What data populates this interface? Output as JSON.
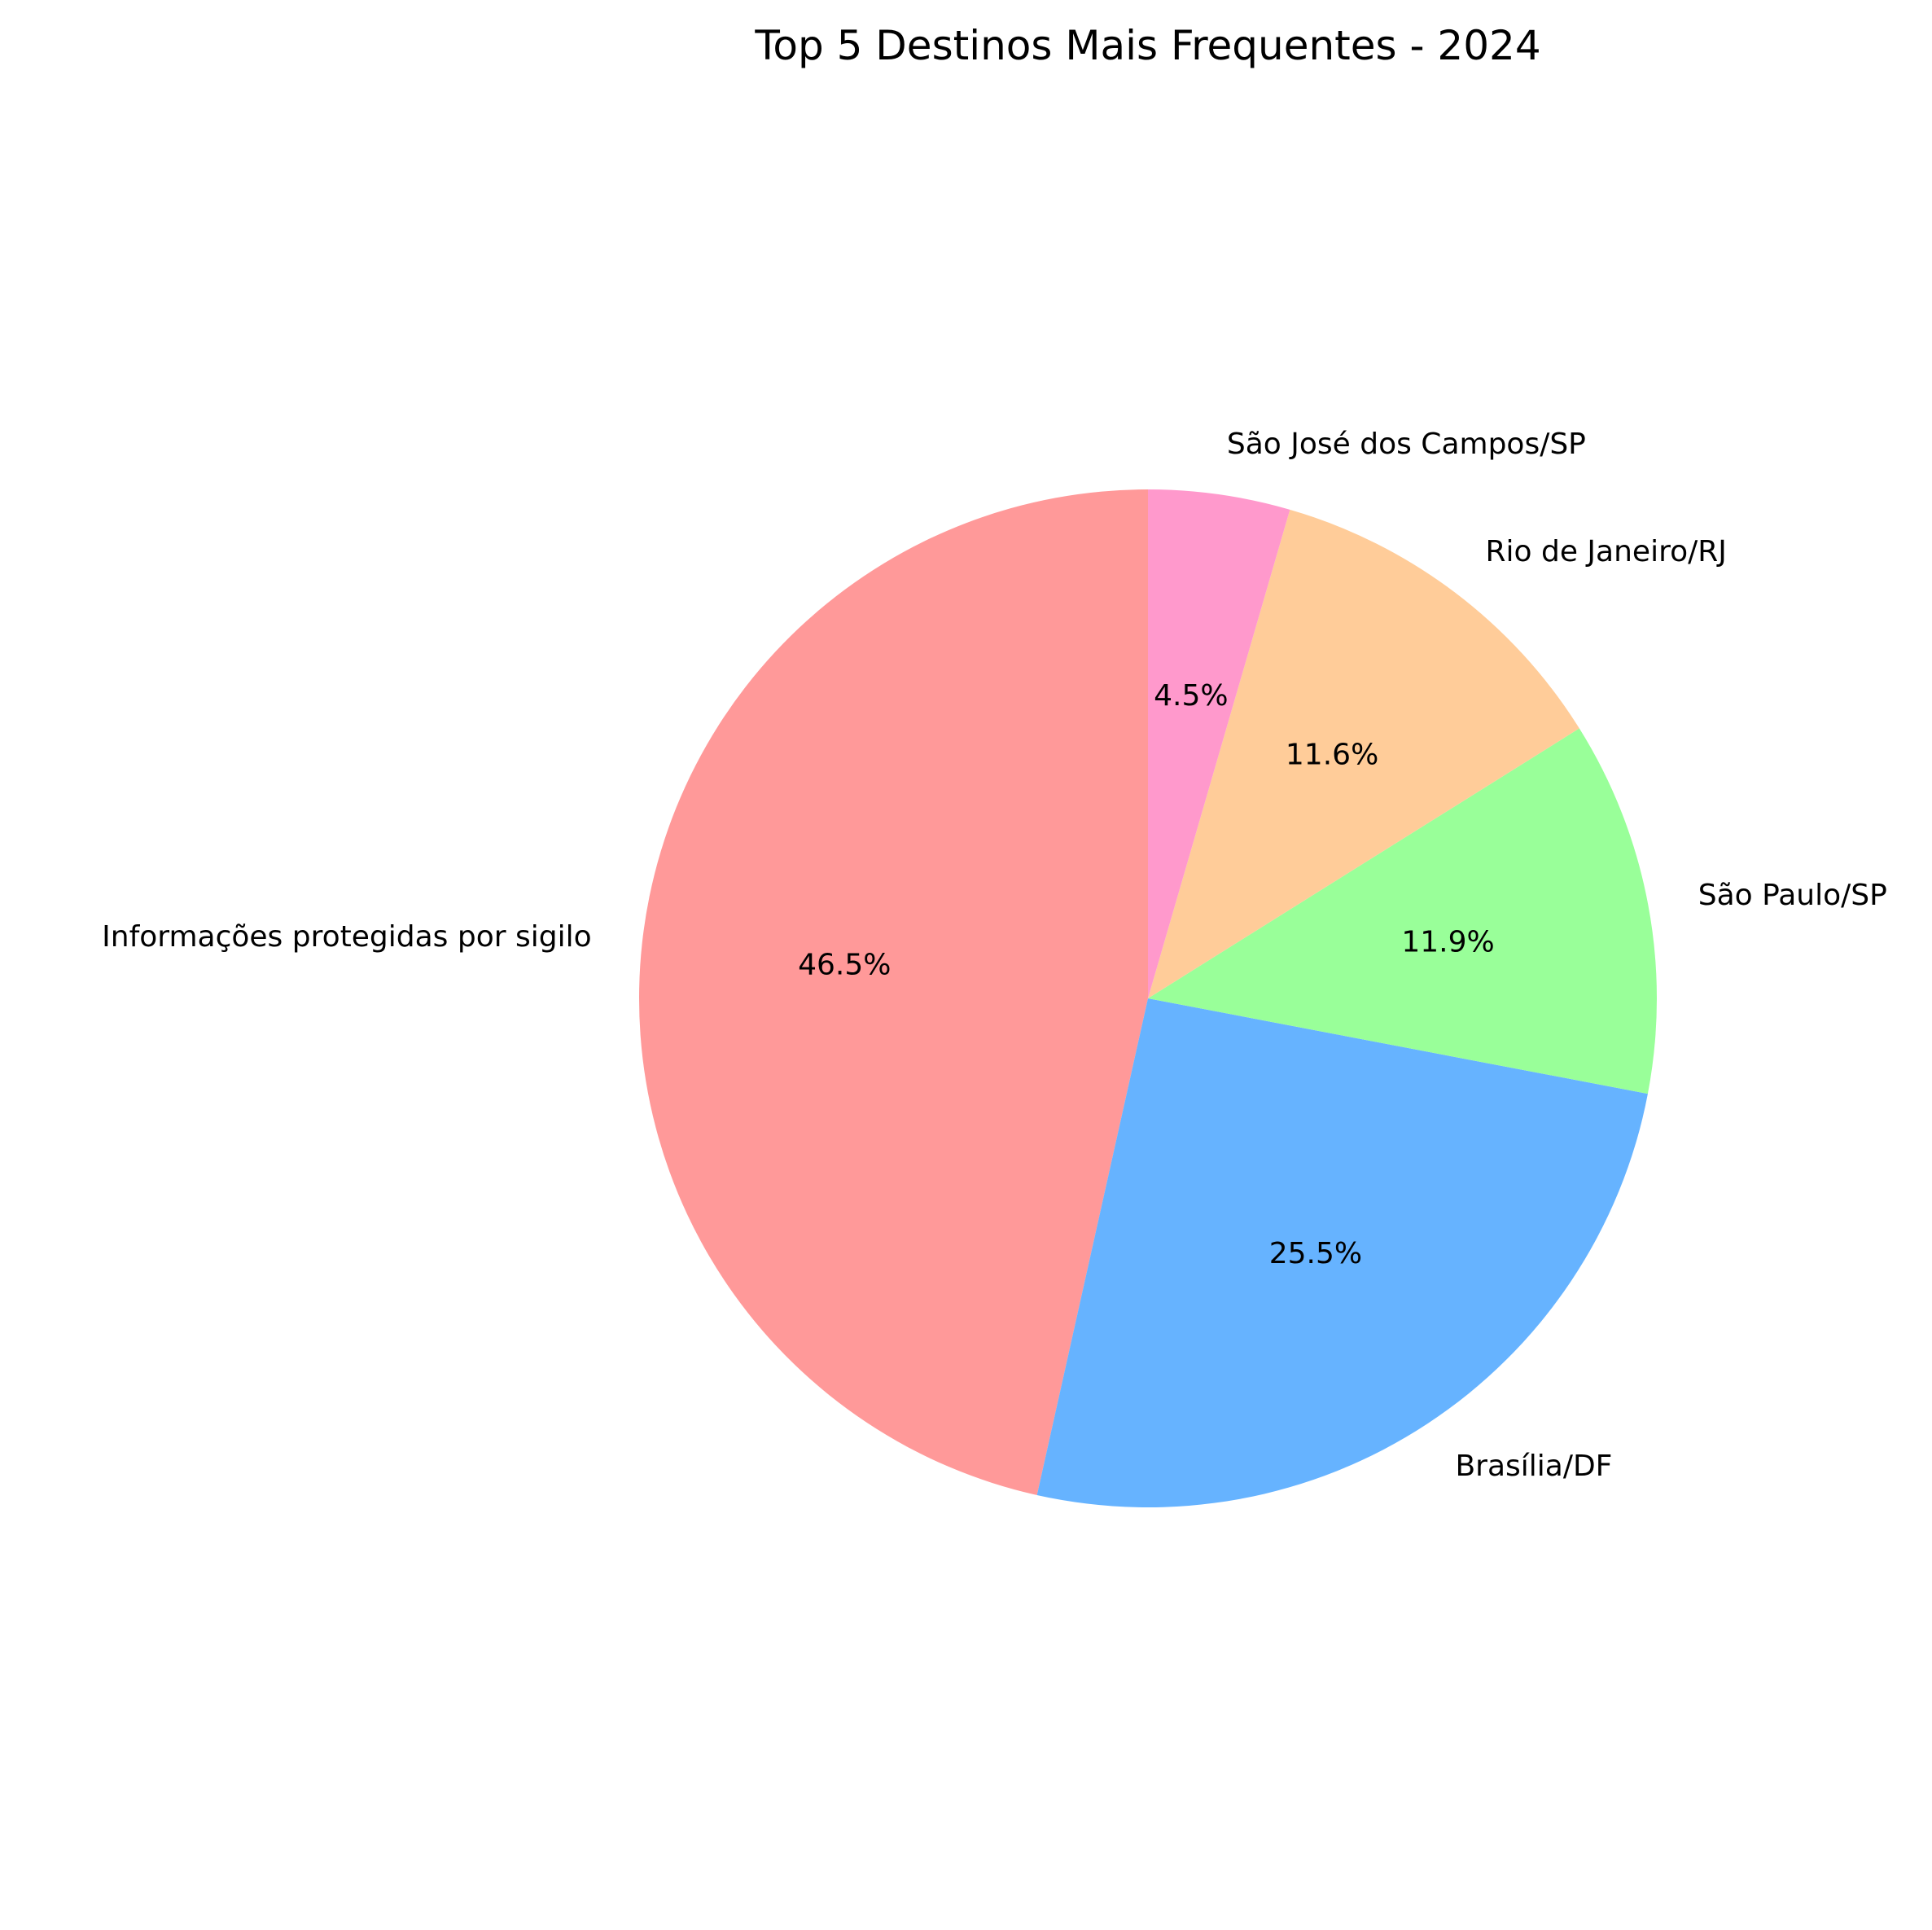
{
  "chart_data": {
    "type": "pie",
    "title": "Top 5 Destinos Mais Frequentes - 2024",
    "start_angle_deg": 90,
    "direction": "counterclockwise",
    "slices": [
      {
        "label": "Informações protegidas por sigilo",
        "value": 46.5,
        "pct_label": "46.5%",
        "color": "#ff9999"
      },
      {
        "label": "Brasília/DF",
        "value": 25.5,
        "pct_label": "25.5%",
        "color": "#66b3ff"
      },
      {
        "label": "São Paulo/SP",
        "value": 11.9,
        "pct_label": "11.9%",
        "color": "#99ff99"
      },
      {
        "label": "Rio de Janeiro/RJ",
        "value": 11.6,
        "pct_label": "11.6%",
        "color": "#ffcc99"
      },
      {
        "label": "São José dos Campos/SP",
        "value": 4.5,
        "pct_label": "4.5%",
        "color": "#ff99cc"
      }
    ]
  }
}
